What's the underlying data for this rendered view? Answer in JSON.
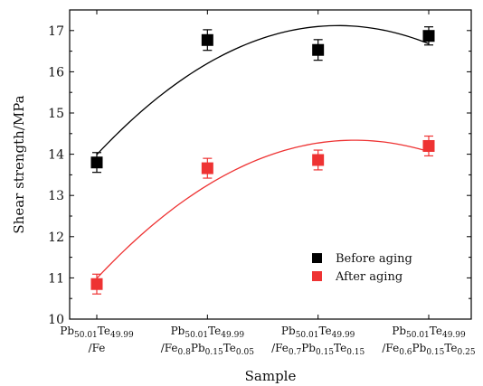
{
  "chart_data": {
    "type": "scatter",
    "xlabel": "Sample",
    "ylabel": "Shear strength/MPa",
    "ylim": [
      10,
      17.5
    ],
    "yticks": [
      10,
      11,
      12,
      13,
      14,
      15,
      16,
      17
    ],
    "grid": false,
    "legend_position": "lower-right",
    "categories": [
      {
        "line1": "Pb₅₀.₀₁Te₄₉.₉₉",
        "line1_parts": [
          [
            "Pb",
            ""
          ],
          [
            "50.01",
            "sub"
          ],
          [
            "Te",
            ""
          ],
          [
            "49.99",
            "sub"
          ]
        ],
        "line2_parts": [
          [
            "/Fe",
            ""
          ]
        ]
      },
      {
        "line1_parts": [
          [
            "Pb",
            ""
          ],
          [
            "50.01",
            "sub"
          ],
          [
            "Te",
            ""
          ],
          [
            "49.99",
            "sub"
          ]
        ],
        "line2_parts": [
          [
            "/Fe",
            ""
          ],
          [
            "0.8",
            "sub"
          ],
          [
            "Pb",
            ""
          ],
          [
            "0.15",
            "sub"
          ],
          [
            "Te",
            ""
          ],
          [
            "0.05",
            "sub"
          ]
        ]
      },
      {
        "line1_parts": [
          [
            "Pb",
            ""
          ],
          [
            "50.01",
            "sub"
          ],
          [
            "Te",
            ""
          ],
          [
            "49.99",
            "sub"
          ]
        ],
        "line2_parts": [
          [
            "/Fe",
            ""
          ],
          [
            "0.7",
            "sub"
          ],
          [
            "Pb",
            ""
          ],
          [
            "0.15",
            "sub"
          ],
          [
            "Te",
            ""
          ],
          [
            "0.15",
            "sub"
          ]
        ]
      },
      {
        "line1_parts": [
          [
            "Pb",
            ""
          ],
          [
            "50.01",
            "sub"
          ],
          [
            "Te",
            ""
          ],
          [
            "49.99",
            "sub"
          ]
        ],
        "line2_parts": [
          [
            "/Fe",
            ""
          ],
          [
            "0.6",
            "sub"
          ],
          [
            "Pb",
            ""
          ],
          [
            "0.15",
            "sub"
          ],
          [
            "Te",
            ""
          ],
          [
            "0.25",
            "sub"
          ]
        ]
      }
    ],
    "series": [
      {
        "name": "Before aging",
        "color": "#000000",
        "values": [
          13.8,
          16.77,
          16.53,
          16.87
        ],
        "errors": [
          0.24,
          0.25,
          0.25,
          0.22
        ]
      },
      {
        "name": "After aging",
        "color": "#ee3333",
        "values": [
          10.85,
          13.66,
          13.86,
          14.2
        ],
        "errors": [
          0.24,
          0.24,
          0.24,
          0.24
        ]
      }
    ]
  }
}
